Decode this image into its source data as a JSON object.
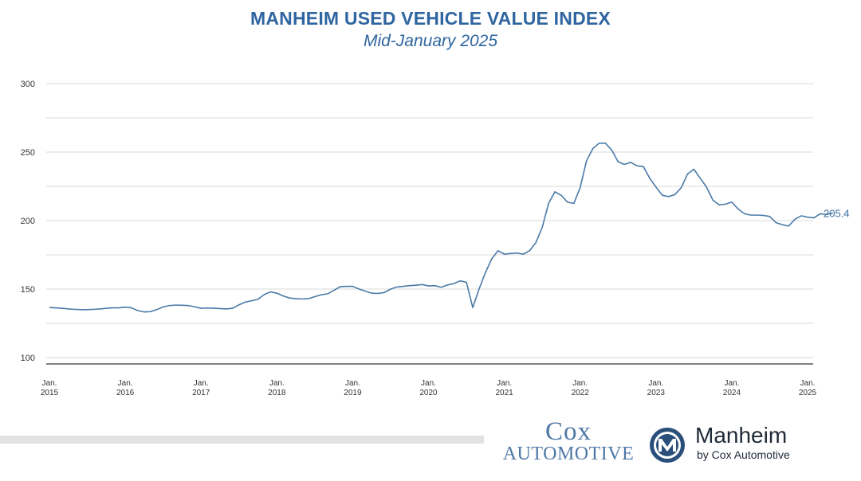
{
  "chart_data": {
    "type": "line",
    "title": "MANHEIM USED VEHICLE VALUE INDEX",
    "subtitle": "Mid-January 2025",
    "xlabel": "",
    "ylabel": "",
    "ylim": [
      100,
      300
    ],
    "yticks": [
      100,
      150,
      200,
      250,
      300
    ],
    "grid": true,
    "line_color": "#4a7aa8",
    "title_color": "#2f65a0",
    "x_tick_labels": [
      {
        "line1": "Jan.",
        "line2": "2015",
        "month_index": 0
      },
      {
        "line1": "Jan.",
        "line2": "2016",
        "month_index": 12
      },
      {
        "line1": "Jan.",
        "line2": "2017",
        "month_index": 24
      },
      {
        "line1": "Jan.",
        "line2": "2018",
        "month_index": 36
      },
      {
        "line1": "Jan.",
        "line2": "2019",
        "month_index": 48
      },
      {
        "line1": "Jan.",
        "line2": "2020",
        "month_index": 60
      },
      {
        "line1": "Jan.",
        "line2": "2021",
        "month_index": 72
      },
      {
        "line1": "Jan.",
        "line2": "2022",
        "month_index": 84
      },
      {
        "line1": "Jan.",
        "line2": "2023",
        "month_index": 96
      },
      {
        "line1": "Jan.",
        "line2": "2024",
        "month_index": 108
      },
      {
        "line1": "Jan.",
        "line2": "2025",
        "month_index": 120
      }
    ],
    "end_label": "205.4",
    "values": [
      136.5,
      136.3,
      136.0,
      135.5,
      135.2,
      135.0,
      135.0,
      135.2,
      135.5,
      136.0,
      136.3,
      136.3,
      136.8,
      136.3,
      134.3,
      133.3,
      133.5,
      135.0,
      137.0,
      138.0,
      138.3,
      138.2,
      138.0,
      137.0,
      136.0,
      136.2,
      136.0,
      135.8,
      135.5,
      136.0,
      138.5,
      140.5,
      141.5,
      142.5,
      146.0,
      148.0,
      147.0,
      145.0,
      143.5,
      143.0,
      142.8,
      143.0,
      144.5,
      145.8,
      146.5,
      149.0,
      151.7,
      152.0,
      152.0,
      150.0,
      148.5,
      147.0,
      146.8,
      147.5,
      150.0,
      151.5,
      152.0,
      152.5,
      152.8,
      153.3,
      152.3,
      152.5,
      151.3,
      153.0,
      154.0,
      156.0,
      155.0,
      136.5,
      150.0,
      162.0,
      172.0,
      178.0,
      175.5,
      176.0,
      176.3,
      175.5,
      178.0,
      184.0,
      195.0,
      212.5,
      221.0,
      218.5,
      213.5,
      212.5,
      224.0,
      243.5,
      252.5,
      256.5,
      256.5,
      251.5,
      243.0,
      241.0,
      242.5,
      240.0,
      239.5,
      231.0,
      224.5,
      218.5,
      217.5,
      219.0,
      224.0,
      234.0,
      237.5,
      231.0,
      224.5,
      215.0,
      211.5,
      212.0,
      213.5,
      208.5,
      205.0,
      204.0,
      204.0,
      203.8,
      203.0,
      198.5,
      197.0,
      196.0,
      201.0,
      203.5,
      202.5,
      202.0,
      205.0,
      204.5,
      205.4
    ]
  },
  "branding": {
    "cox_line1": "Cox",
    "cox_line2": "Automotive",
    "manheim_name": "Manheim",
    "manheim_sub": "by Cox Automotive"
  }
}
